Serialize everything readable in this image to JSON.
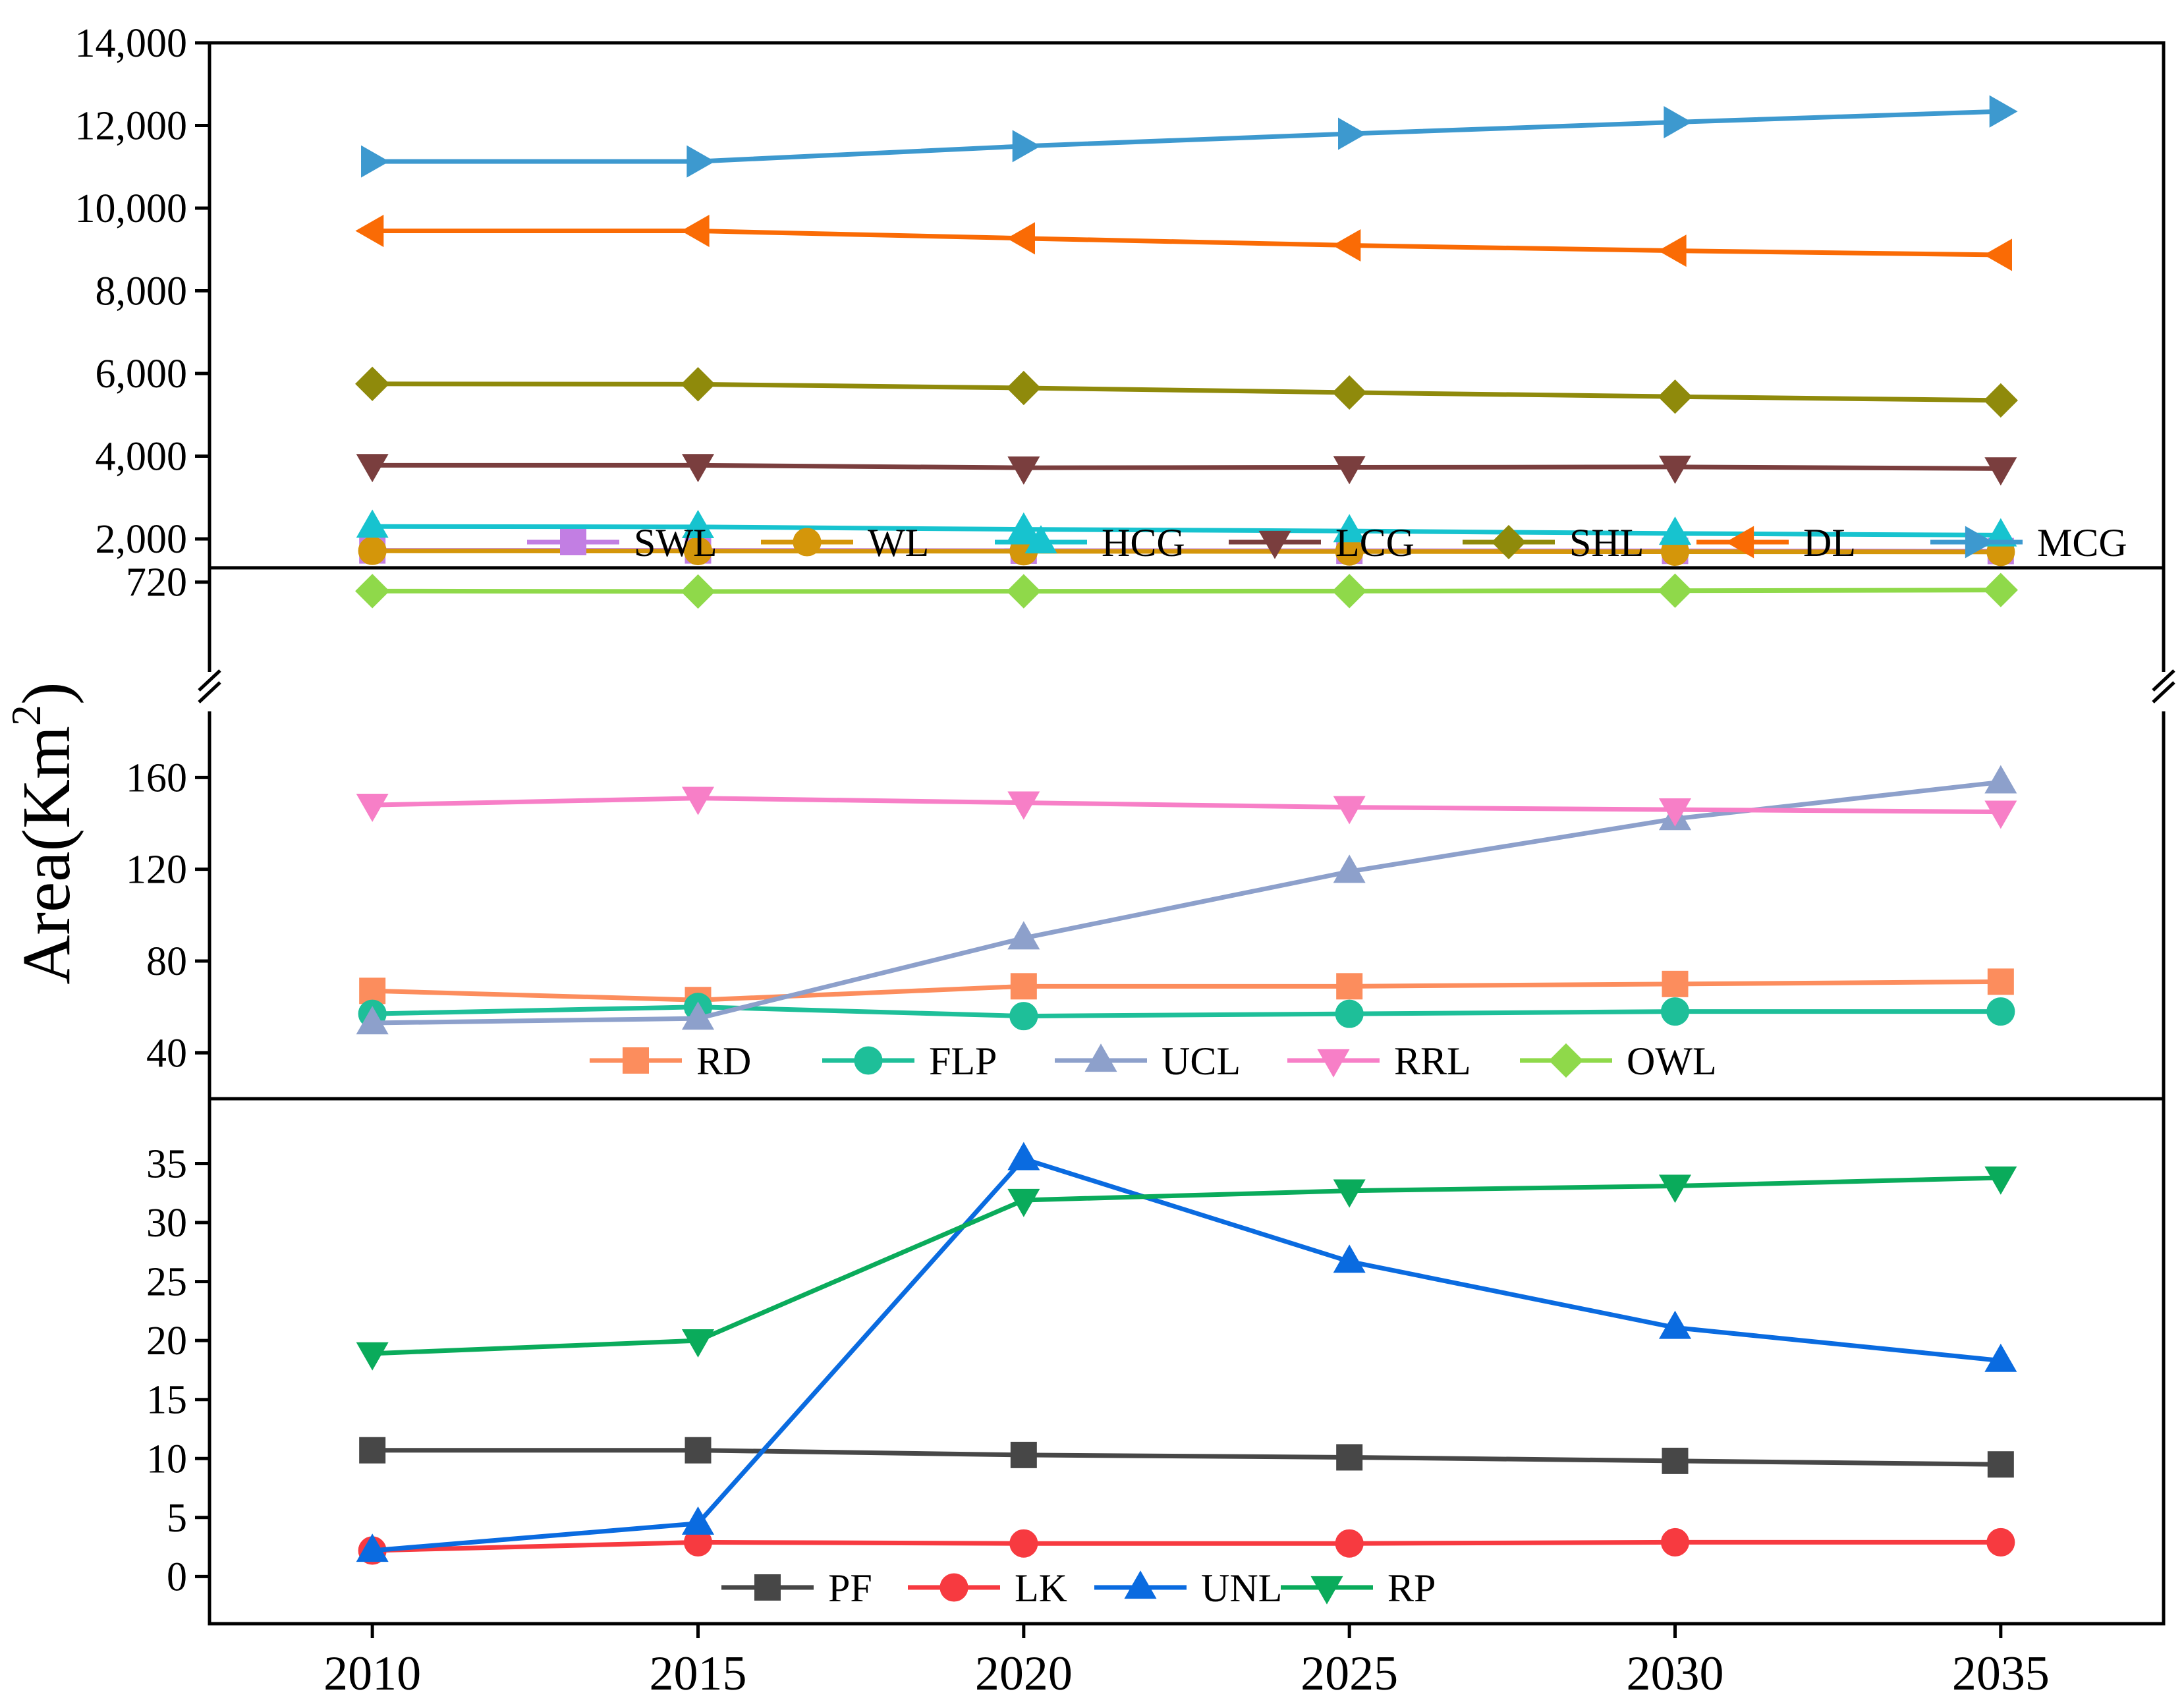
{
  "chart_data": {
    "type": "line",
    "ylabel": "Area(Km²)",
    "ylabel_text": "Area(Km",
    "ylabel_sup": "2",
    "ylabel_close": ")",
    "x": [
      2010,
      2015,
      2020,
      2025,
      2030,
      2035
    ],
    "x_labels": [
      "2010",
      "2015",
      "2020",
      "2025",
      "2030",
      "2035"
    ],
    "xlim": [
      2007.5,
      2037.5
    ],
    "panels": [
      {
        "id": "top",
        "ylim": [
          1300,
          14000
        ],
        "yticks": [
          2000,
          4000,
          6000,
          8000,
          10000,
          12000,
          14000
        ],
        "ytick_labels": [
          "2,000",
          "4,000",
          "6,000",
          "8,000",
          "10,000",
          "12,000",
          "14,000"
        ],
        "series": [
          {
            "name": "SWL",
            "color": "#c27ee3",
            "marker": "square",
            "values": [
              1720,
              1720,
              1715,
              1712,
              1710,
              1705
            ]
          },
          {
            "name": "WL",
            "color": "#d4960a",
            "marker": "circle",
            "values": [
              1710,
              1705,
              1700,
              1695,
              1690,
              1685
            ]
          },
          {
            "name": "HCG",
            "color": "#17c3cf",
            "marker": "triangle-up",
            "values": [
              2300,
              2290,
              2230,
              2190,
              2130,
              2090
            ]
          },
          {
            "name": "LCG",
            "color": "#7a3e3e",
            "marker": "triangle-down",
            "values": [
              3780,
              3780,
              3720,
              3730,
              3740,
              3700
            ]
          },
          {
            "name": "SHL",
            "color": "#8f8a0b",
            "marker": "diamond",
            "values": [
              5750,
              5740,
              5650,
              5540,
              5440,
              5350
            ]
          },
          {
            "name": "DL",
            "color": "#fa6b05",
            "marker": "triangle-left",
            "values": [
              9450,
              9450,
              9270,
              9100,
              8970,
              8870
            ]
          },
          {
            "name": "MCG",
            "color": "#3d99cf",
            "marker": "triangle-right",
            "values": [
              11130,
              11130,
              11500,
              11800,
              12080,
              12340
            ]
          }
        ]
      },
      {
        "id": "middle",
        "segments": [
          {
            "ylim": [
              190,
              790
            ],
            "ytick": 720,
            "ytick_label": "720"
          },
          {
            "ylim": [
              20,
              198
            ],
            "yticks": [
              40,
              80,
              120,
              160
            ],
            "ytick_labels": [
              "40",
              "80",
              "120",
              "160"
            ]
          }
        ],
        "series": [
          {
            "name": "RD",
            "color": "#fc8d5d",
            "marker": "square",
            "values": [
              67,
              63,
              69,
              69,
              70,
              71
            ]
          },
          {
            "name": "FLP",
            "color": "#1ebf99",
            "marker": "circle",
            "values": [
              57,
              60,
              56,
              57,
              58,
              58
            ]
          },
          {
            "name": "UCL",
            "color": "#8da0cb",
            "marker": "triangle-up",
            "values": [
              53,
              55,
              90,
              119,
              142,
              158
            ]
          },
          {
            "name": "RRL",
            "color": "#f77fc7",
            "marker": "triangle-down",
            "values": [
              148,
              151,
              149,
              147,
              146,
              145
            ]
          },
          {
            "name": "OWL",
            "color": "#8fd94a",
            "marker": "diamond",
            "values": [
              676,
              674,
              675,
              676,
              678,
              681
            ]
          }
        ]
      },
      {
        "id": "bottom",
        "ylim": [
          -4,
          40.5
        ],
        "yticks": [
          0,
          5,
          10,
          15,
          20,
          25,
          30,
          35
        ],
        "ytick_labels": [
          "0",
          "5",
          "10",
          "15",
          "20",
          "25",
          "30",
          "35"
        ],
        "series": [
          {
            "name": "PF",
            "color": "#474747",
            "marker": "square",
            "values": [
              10.7,
              10.7,
              10.3,
              10.1,
              9.8,
              9.5
            ]
          },
          {
            "name": "LK",
            "color": "#f73a40",
            "marker": "circle",
            "values": [
              2.2,
              2.9,
              2.8,
              2.8,
              2.9,
              2.9
            ]
          },
          {
            "name": "UNL",
            "color": "#0a6be0",
            "marker": "triangle-up",
            "values": [
              2.2,
              4.5,
              35.4,
              26.7,
              21.1,
              18.3
            ]
          },
          {
            "name": "RP",
            "color": "#0aab5b",
            "marker": "triangle-down",
            "values": [
              18.9,
              20.0,
              31.9,
              32.7,
              33.1,
              33.8
            ]
          }
        ]
      }
    ]
  }
}
